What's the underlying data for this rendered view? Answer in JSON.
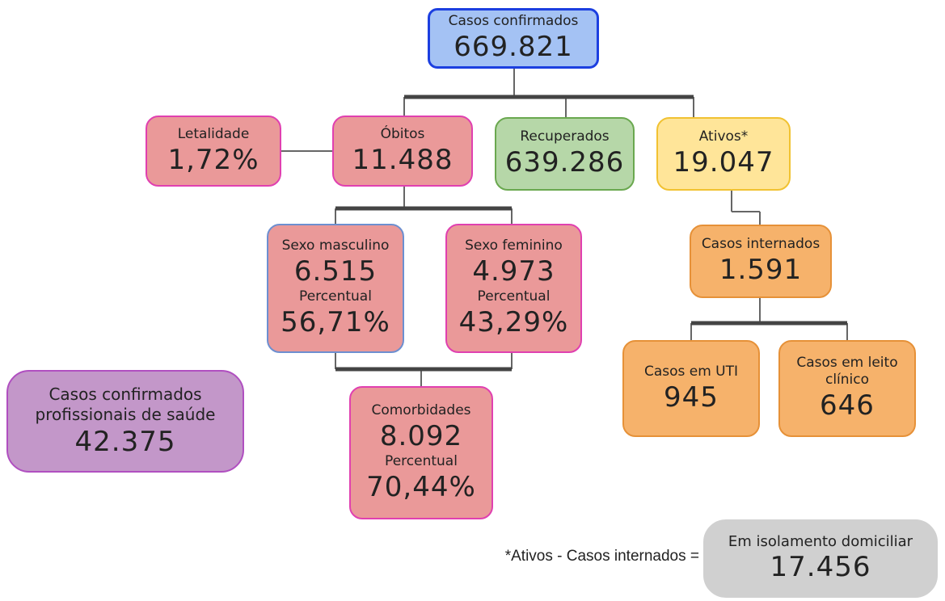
{
  "nodes": [
    {
      "id": "confirmados",
      "label": "Casos confirmados",
      "value": "669.821"
    },
    {
      "id": "letalidade",
      "label": "Letalidade",
      "value": "1,72%"
    },
    {
      "id": "obitos",
      "label": "Óbitos",
      "value": "11.488"
    },
    {
      "id": "recuperados",
      "label": "Recuperados",
      "value": "639.286"
    },
    {
      "id": "ativos",
      "label": "Ativos*",
      "value": "19.047"
    },
    {
      "id": "masculino",
      "label": "Sexo masculino",
      "value": "6.515",
      "sublabel": "Percentual",
      "percent": "56,71%"
    },
    {
      "id": "feminino",
      "label": "Sexo feminino",
      "value": "4.973",
      "sublabel": "Percentual",
      "percent": "43,29%"
    },
    {
      "id": "comorbidades",
      "label": "Comorbidades",
      "value": "8.092",
      "sublabel": "Percentual",
      "percent": "70,44%"
    },
    {
      "id": "internados",
      "label": "Casos internados",
      "value": "1.591"
    },
    {
      "id": "uti",
      "label": "Casos em UTI",
      "value": "945"
    },
    {
      "id": "leito",
      "label": "Casos em leito clínico",
      "value": "646"
    },
    {
      "id": "profissionais",
      "label": "Casos confirmados profissionais de saúde",
      "value": "42.375"
    },
    {
      "id": "isolamento",
      "label": "Em isolamento domiciliar",
      "value": "17.456"
    }
  ],
  "footnote": "*Ativos - Casos internados ="
}
